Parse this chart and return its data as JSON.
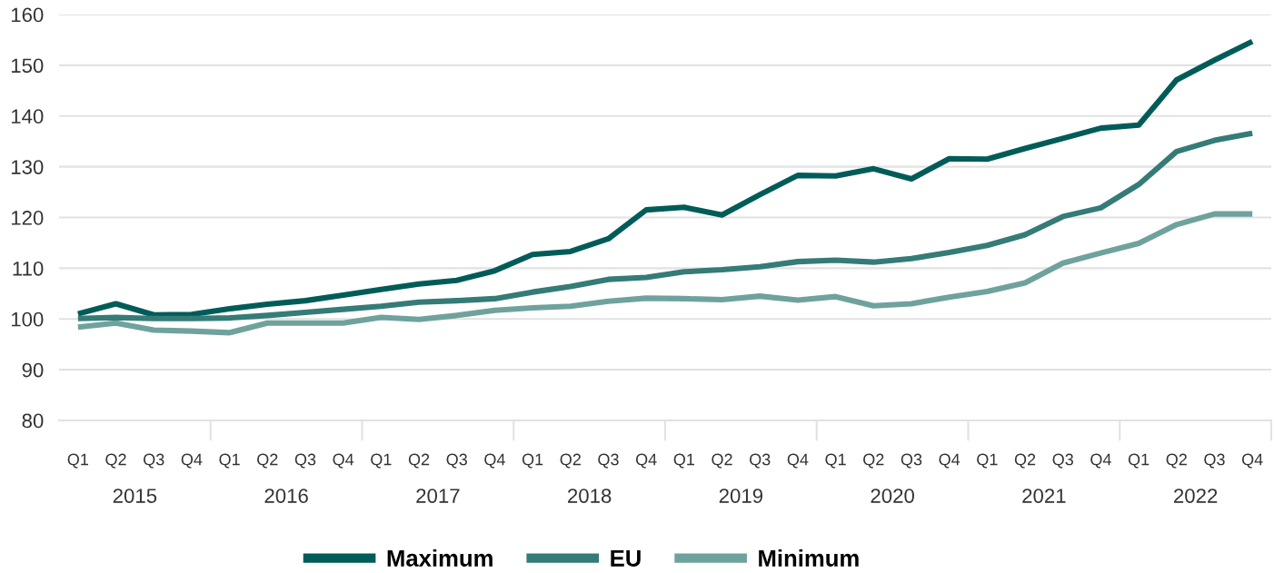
{
  "chart_data": {
    "type": "line",
    "categories": [
      "Q1",
      "Q2",
      "Q3",
      "Q4",
      "Q1",
      "Q2",
      "Q3",
      "Q4",
      "Q1",
      "Q2",
      "Q3",
      "Q4",
      "Q1",
      "Q2",
      "Q3",
      "Q4",
      "Q1",
      "Q2",
      "Q3",
      "Q4",
      "Q1",
      "Q2",
      "Q3",
      "Q4",
      "Q1",
      "Q2",
      "Q3",
      "Q4",
      "Q1",
      "Q2",
      "Q3",
      "Q4"
    ],
    "annotations": [
      "2015",
      "2016",
      "2017",
      "2018",
      "2019",
      "2020",
      "2021",
      "2022"
    ],
    "ylim": [
      80,
      160
    ],
    "yticks": [
      80,
      90,
      100,
      110,
      120,
      130,
      140,
      150,
      160
    ],
    "grid": "y",
    "legend": "bottom",
    "series": [
      {
        "name": "Maximum",
        "color": "#005c58",
        "values": [
          101.0,
          103.0,
          100.8,
          100.9,
          102.0,
          102.9,
          103.6,
          104.7,
          105.8,
          106.9,
          107.6,
          109.5,
          112.7,
          113.3,
          115.8,
          121.5,
          122.0,
          120.5,
          124.5,
          128.3,
          128.2,
          129.6,
          127.6,
          131.6,
          131.5,
          133.6,
          135.6,
          137.6,
          138.2,
          147.1,
          151.0,
          154.7
        ]
      },
      {
        "name": "EU",
        "color": "#357b77",
        "values": [
          100.1,
          100.3,
          100.1,
          100.1,
          100.2,
          100.7,
          101.3,
          101.9,
          102.5,
          103.3,
          103.6,
          104.0,
          105.3,
          106.4,
          107.8,
          108.2,
          109.3,
          109.7,
          110.3,
          111.3,
          111.6,
          111.2,
          111.9,
          113.1,
          114.5,
          116.6,
          120.2,
          121.9,
          126.5,
          133.0,
          135.2,
          136.6
        ]
      },
      {
        "name": "Minimum",
        "color": "#6fa29d",
        "values": [
          98.4,
          99.2,
          97.8,
          97.6,
          97.3,
          99.2,
          99.2,
          99.2,
          100.3,
          99.9,
          100.7,
          101.7,
          102.2,
          102.5,
          103.5,
          104.1,
          104.0,
          103.8,
          104.5,
          103.7,
          104.4,
          102.6,
          103.0,
          104.3,
          105.4,
          107.1,
          111.0,
          113.0,
          114.9,
          118.6,
          120.7,
          120.7
        ]
      }
    ]
  }
}
